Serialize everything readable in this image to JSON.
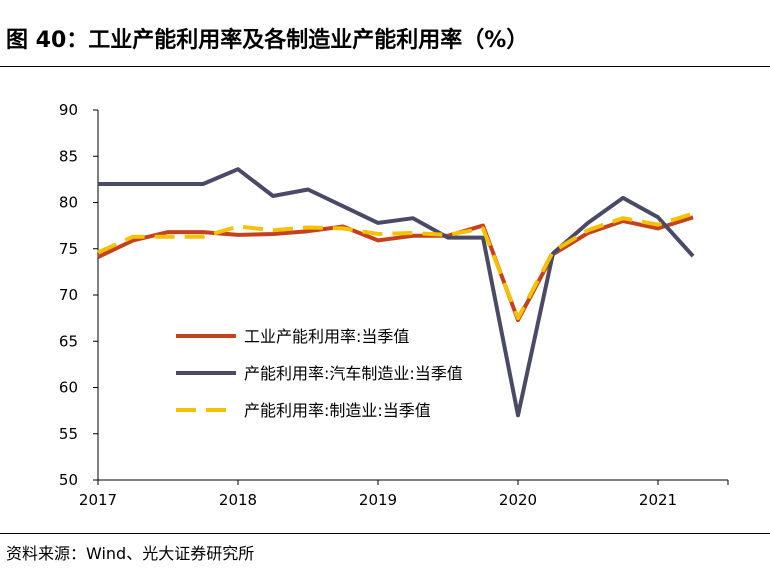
{
  "page": {
    "title": "图 40：工业产能利用率及各制造业产能利用率（%）",
    "source": "资料来源：Wind、光大证券研究所"
  },
  "chart_data": {
    "type": "line",
    "title": "图 40：工业产能利用率及各制造业产能利用率（%）",
    "xlabel": "",
    "ylabel": "",
    "ylim": [
      50,
      90
    ],
    "yticks": [
      50,
      55,
      60,
      65,
      70,
      75,
      80,
      85,
      90
    ],
    "xtick_labels": [
      "2017",
      "2018",
      "2019",
      "2020",
      "2021"
    ],
    "x": [
      "2017Q1",
      "2017Q2",
      "2017Q3",
      "2017Q4",
      "2018Q1",
      "2018Q2",
      "2018Q3",
      "2018Q4",
      "2019Q1",
      "2019Q2",
      "2019Q3",
      "2019Q4",
      "2020Q1",
      "2020Q2",
      "2020Q3",
      "2020Q4",
      "2021Q1",
      "2021Q2"
    ],
    "grid": false,
    "legend_position": "center-left",
    "series": [
      {
        "name": "工业产能利用率:当季值",
        "color": "#c5401d",
        "dash": "solid",
        "values": [
          74.1,
          75.9,
          76.8,
          76.8,
          76.5,
          76.6,
          76.9,
          77.4,
          75.9,
          76.4,
          76.4,
          77.5,
          67.3,
          74.4,
          76.7,
          78.0,
          77.2,
          78.4
        ]
      },
      {
        "name": "产能利用率:汽车制造业:当季值",
        "color": "#4a4a66",
        "dash": "solid",
        "values": [
          82.0,
          82.0,
          82.0,
          82.0,
          83.6,
          80.7,
          81.4,
          79.6,
          77.8,
          78.3,
          76.2,
          76.2,
          57.0,
          74.5,
          77.8,
          80.5,
          78.4,
          74.2
        ]
      },
      {
        "name": "产能利用率:制造业:当季值",
        "color": "#f6c100",
        "dash": "dashed",
        "values": [
          74.6,
          76.3,
          76.3,
          76.3,
          77.4,
          77.0,
          77.3,
          77.2,
          76.6,
          76.7,
          76.5,
          77.2,
          67.5,
          74.7,
          77.0,
          78.3,
          77.6,
          78.8
        ]
      }
    ]
  }
}
